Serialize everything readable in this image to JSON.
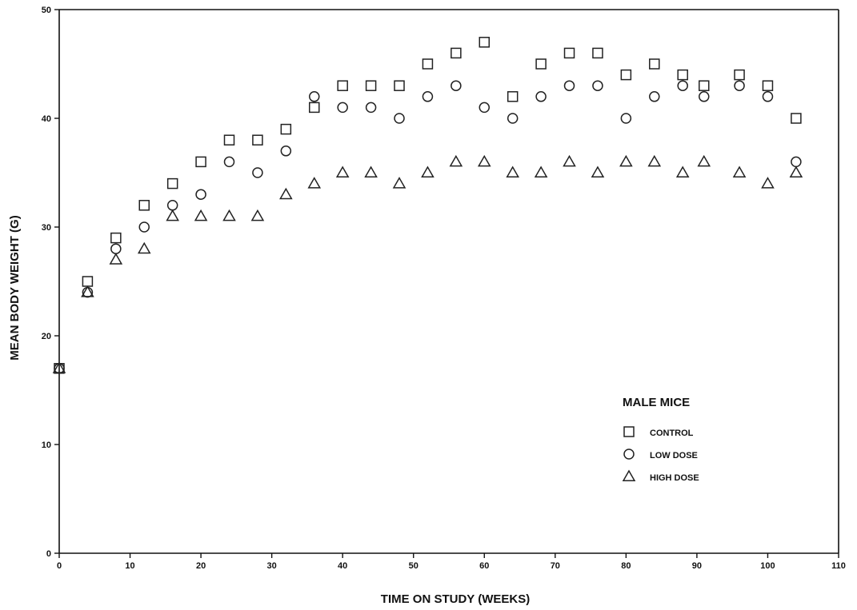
{
  "chart_data": {
    "type": "scatter",
    "title": "",
    "xlabel": "TIME ON STUDY (WEEKS)",
    "ylabel": "MEAN BODY WEIGHT (G)",
    "xlim": [
      0,
      110
    ],
    "ylim": [
      0,
      50
    ],
    "xticks": [
      0,
      10,
      20,
      30,
      40,
      50,
      60,
      70,
      80,
      90,
      100,
      110
    ],
    "yticks": [
      0,
      10,
      20,
      30,
      40,
      50
    ],
    "grid": false,
    "legend": {
      "title": "MALE MICE",
      "placement": "lower-right"
    },
    "series": [
      {
        "name": "CONTROL",
        "marker": "square",
        "points": [
          [
            0,
            17
          ],
          [
            4,
            25
          ],
          [
            8,
            29
          ],
          [
            12,
            32
          ],
          [
            16,
            34
          ],
          [
            20,
            36
          ],
          [
            24,
            38
          ],
          [
            28,
            38
          ],
          [
            32,
            39
          ],
          [
            36,
            41
          ],
          [
            40,
            43
          ],
          [
            44,
            43
          ],
          [
            48,
            43
          ],
          [
            52,
            45
          ],
          [
            56,
            46
          ],
          [
            60,
            47
          ],
          [
            64,
            42
          ],
          [
            68,
            45
          ],
          [
            72,
            46
          ],
          [
            76,
            46
          ],
          [
            80,
            44
          ],
          [
            84,
            45
          ],
          [
            88,
            44
          ],
          [
            91,
            43
          ],
          [
            96,
            44
          ],
          [
            100,
            43
          ],
          [
            104,
            40
          ]
        ]
      },
      {
        "name": "LOW DOSE",
        "marker": "circle",
        "points": [
          [
            0,
            17
          ],
          [
            4,
            24
          ],
          [
            8,
            28
          ],
          [
            12,
            30
          ],
          [
            16,
            32
          ],
          [
            20,
            33
          ],
          [
            24,
            36
          ],
          [
            28,
            35
          ],
          [
            32,
            37
          ],
          [
            36,
            42
          ],
          [
            40,
            41
          ],
          [
            44,
            41
          ],
          [
            48,
            40
          ],
          [
            52,
            42
          ],
          [
            56,
            43
          ],
          [
            60,
            41
          ],
          [
            64,
            40
          ],
          [
            68,
            42
          ],
          [
            72,
            43
          ],
          [
            76,
            43
          ],
          [
            80,
            40
          ],
          [
            84,
            42
          ],
          [
            88,
            43
          ],
          [
            91,
            42
          ],
          [
            96,
            43
          ],
          [
            100,
            42
          ],
          [
            104,
            36
          ]
        ]
      },
      {
        "name": "HIGH DOSE",
        "marker": "triangle",
        "points": [
          [
            0,
            17
          ],
          [
            4,
            24
          ],
          [
            8,
            27
          ],
          [
            12,
            28
          ],
          [
            16,
            31
          ],
          [
            20,
            31
          ],
          [
            24,
            31
          ],
          [
            28,
            31
          ],
          [
            32,
            33
          ],
          [
            36,
            34
          ],
          [
            40,
            35
          ],
          [
            44,
            35
          ],
          [
            48,
            34
          ],
          [
            52,
            35
          ],
          [
            56,
            36
          ],
          [
            60,
            36
          ],
          [
            64,
            35
          ],
          [
            68,
            35
          ],
          [
            72,
            36
          ],
          [
            76,
            35
          ],
          [
            80,
            36
          ],
          [
            84,
            36
          ],
          [
            88,
            35
          ],
          [
            91,
            36
          ],
          [
            96,
            35
          ],
          [
            100,
            34
          ],
          [
            104,
            35
          ]
        ]
      }
    ]
  }
}
